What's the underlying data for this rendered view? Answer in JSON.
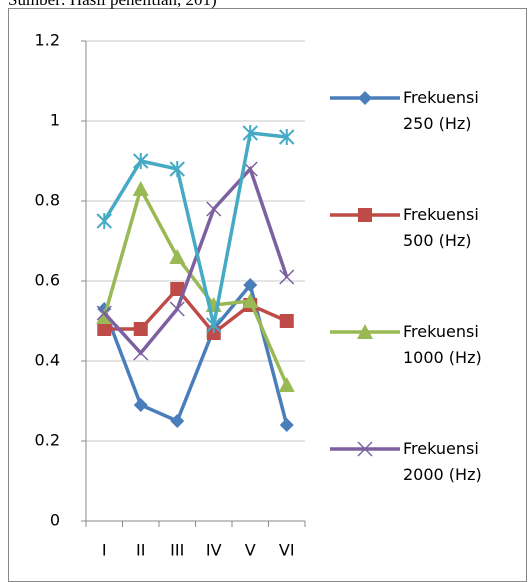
{
  "source": "Sumber: Hasil penelitian, 201)",
  "chart_data": {
    "type": "line",
    "categories": [
      "I",
      "II",
      "III",
      "IV",
      "V",
      "VI"
    ],
    "ylim": [
      0,
      1.2
    ],
    "yticks": [
      0,
      0.2,
      0.4,
      0.6,
      0.8,
      1,
      1.2
    ],
    "grid": true,
    "series": [
      {
        "name": "Frekuensi 250 (Hz)",
        "color": "#4a7ebb",
        "marker": "diamond",
        "values": [
          0.53,
          0.29,
          0.25,
          0.48,
          0.59,
          0.24
        ]
      },
      {
        "name": "Frekuensi 500 (Hz)",
        "color": "#be4b48",
        "marker": "square",
        "values": [
          0.48,
          0.48,
          0.58,
          0.47,
          0.54,
          0.5
        ]
      },
      {
        "name": "Frekuensi 1000 (Hz)",
        "color": "#98b954",
        "marker": "triangle",
        "values": [
          0.51,
          0.83,
          0.66,
          0.54,
          0.55,
          0.34
        ]
      },
      {
        "name": "Frekuensi 2000 (Hz)",
        "color": "#7d60a0",
        "marker": "x",
        "values": [
          0.52,
          0.42,
          0.53,
          0.78,
          0.88,
          0.61
        ]
      },
      {
        "color": "#46aac5",
        "marker": "star",
        "values": [
          0.75,
          0.9,
          0.88,
          0.49,
          0.97,
          0.96
        ]
      }
    ]
  }
}
